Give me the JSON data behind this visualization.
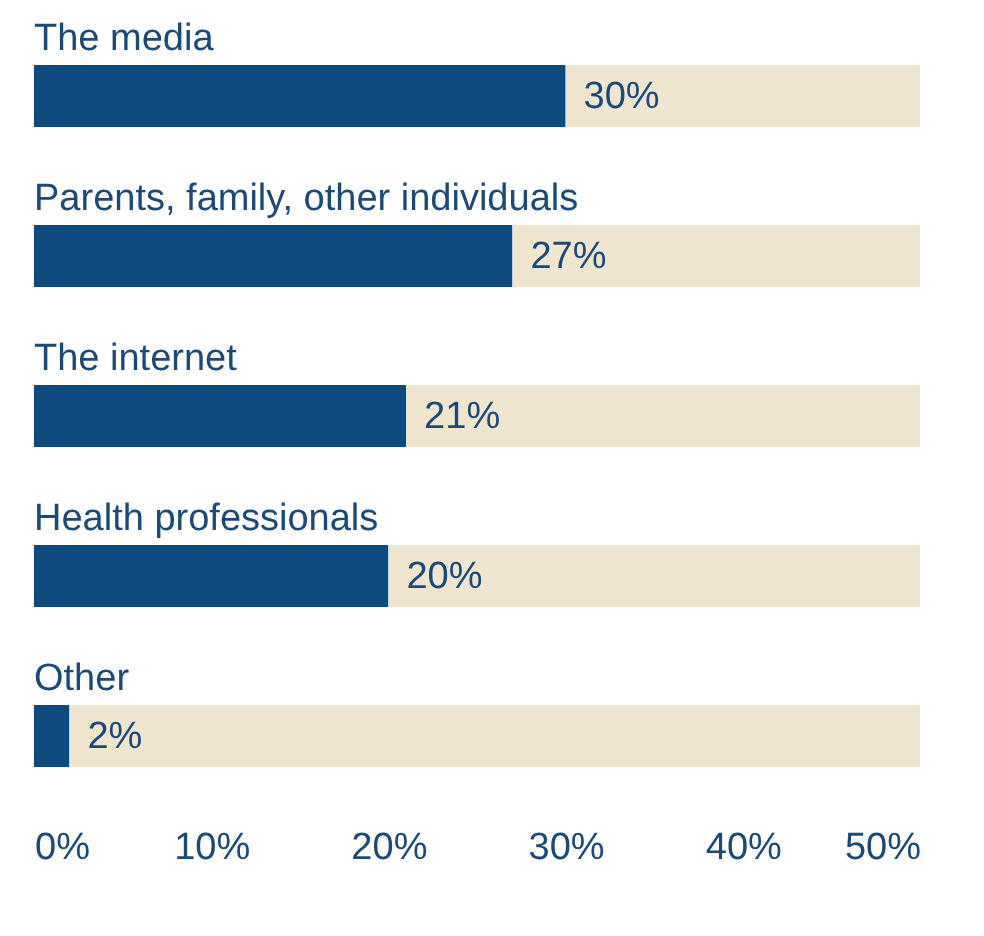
{
  "chart_data": {
    "type": "bar",
    "orientation": "horizontal",
    "stacked": true,
    "categories": [
      "The media",
      "Parents, family, other individuals",
      "The internet",
      "Health professionals",
      "Other"
    ],
    "series": [
      {
        "color": "#0d4a7f",
        "values": [
          30,
          27,
          21,
          20,
          2
        ],
        "value_labels": [
          "30%",
          "27%",
          "21%",
          "20%",
          "2%"
        ]
      },
      {
        "color": "#f0e6d0",
        "values": [
          20,
          23,
          29,
          30,
          48
        ]
      }
    ],
    "xlim": [
      0,
      50
    ],
    "xticks": [
      {
        "value": 0,
        "label": "0%"
      },
      {
        "value": 10,
        "label": "10%"
      },
      {
        "value": 20,
        "label": "20%"
      },
      {
        "value": 30,
        "label": "30%"
      },
      {
        "value": 40,
        "label": "40%"
      },
      {
        "value": 50,
        "label": "50%"
      }
    ],
    "grid": false
  }
}
